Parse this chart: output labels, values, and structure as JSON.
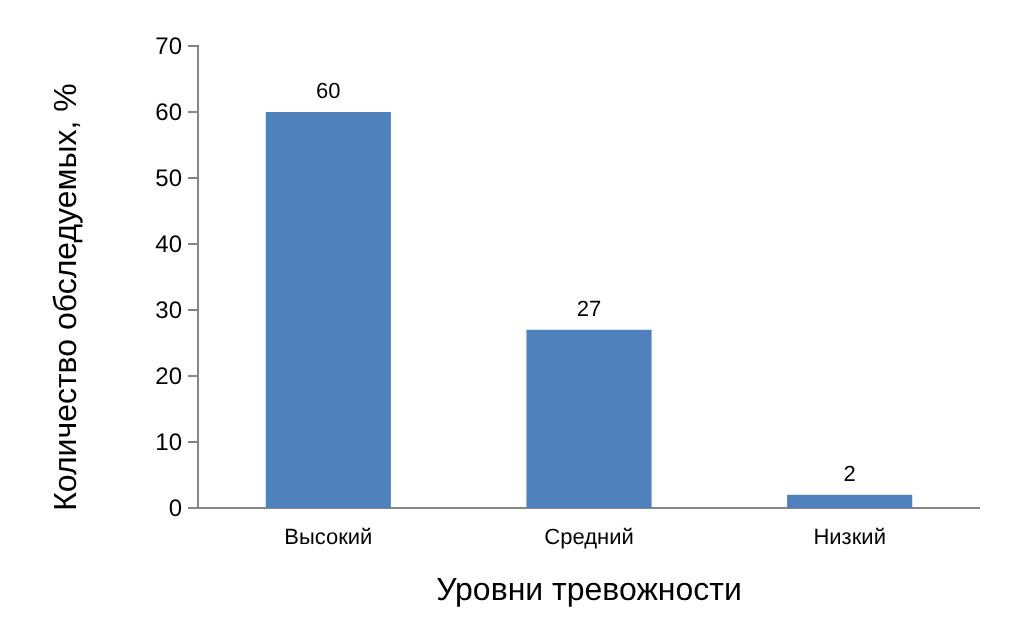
{
  "chart_data": {
    "type": "bar",
    "xlabel": "Уровни тревожности",
    "ylabel": "Количество обследуемых, %",
    "categories": [
      "Высокий",
      "Средний",
      "Низкий"
    ],
    "values": [
      60,
      27,
      2
    ],
    "color": "#4f81bd",
    "ylim": [
      0,
      70
    ],
    "yticks": [
      0,
      10,
      20,
      30,
      40,
      50,
      60,
      70
    ],
    "grid": false,
    "data_labels": true
  }
}
